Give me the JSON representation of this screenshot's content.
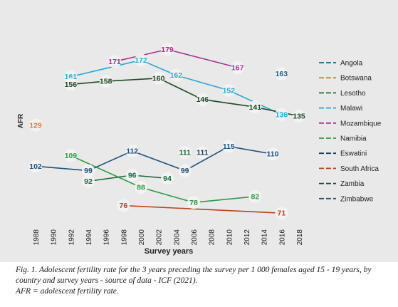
{
  "chart_data": {
    "type": "line",
    "ylabel": "AFR",
    "xlabel": "Survey years",
    "x_ticks": [
      1988,
      1990,
      1992,
      1994,
      1996,
      1998,
      2000,
      2002,
      2004,
      2006,
      2008,
      2010,
      2012,
      2014,
      2016,
      2018
    ],
    "xlim": [
      1988,
      2018
    ],
    "ylim": [
      65,
      190
    ],
    "grid": false,
    "legend_position": "right",
    "series": [
      {
        "name": "Angola",
        "color": "#1f5f8b",
        "points": [
          {
            "x": 2016,
            "y": 163
          }
        ]
      },
      {
        "name": "Botswana",
        "color": "#e07a3c",
        "points": [
          {
            "x": 1988,
            "y": 129
          }
        ]
      },
      {
        "name": "Lesotho",
        "color": "#1a6a3d",
        "points": [
          {
            "x": 2005,
            "y": 111
          }
        ]
      },
      {
        "name": "Malawi",
        "color": "#29a8d4",
        "points": [
          {
            "x": 1992,
            "y": 161
          },
          {
            "x": 2000,
            "y": 172
          },
          {
            "x": 2004,
            "y": 162
          },
          {
            "x": 2010,
            "y": 152
          },
          {
            "x": 2016,
            "y": 136
          }
        ]
      },
      {
        "name": "Mozambique",
        "color": "#a3338f",
        "points": [
          {
            "x": 1997,
            "y": 171
          },
          {
            "x": 2003,
            "y": 179
          },
          {
            "x": 2011,
            "y": 167
          }
        ]
      },
      {
        "name": "Namibia",
        "color": "#2e9b45",
        "points": [
          {
            "x": 1992,
            "y": 109
          },
          {
            "x": 2000,
            "y": 88
          },
          {
            "x": 2006,
            "y": 78
          },
          {
            "x": 2013,
            "y": 82
          }
        ]
      },
      {
        "name": "Eswatini",
        "color": "#1c3a5c",
        "points": [
          {
            "x": 2007,
            "y": 111
          }
        ]
      },
      {
        "name": "South Africa",
        "color": "#b5451b",
        "points": [
          {
            "x": 1998,
            "y": 76
          },
          {
            "x": 2016,
            "y": 71
          }
        ]
      },
      {
        "name": "Zambia",
        "color": "#1d4a24",
        "points": [
          {
            "x": 1992,
            "y": 156
          },
          {
            "x": 1996,
            "y": 158
          },
          {
            "x": 2002,
            "y": 160
          },
          {
            "x": 2007,
            "y": 146
          },
          {
            "x": 2013,
            "y": 141
          },
          {
            "x": 2018,
            "y": 135
          }
        ]
      },
      {
        "name": "Zimbabwe",
        "color": "#22527a",
        "points": [
          {
            "x": 1988,
            "y": 102
          },
          {
            "x": 1994,
            "y": 99
          },
          {
            "x": 1999,
            "y": 112
          },
          {
            "x": 2005,
            "y": 99
          },
          {
            "x": 2010,
            "y": 115
          },
          {
            "x": 2015,
            "y": 110
          }
        ]
      }
    ],
    "extra_labels": [
      {
        "value": 92,
        "x": 1994,
        "y": 92,
        "color": "#1a6a3d"
      },
      {
        "value": 96,
        "x": 1999,
        "y": 96,
        "color": "#1a6a3d"
      },
      {
        "value": 94,
        "x": 2003,
        "y": 94,
        "color": "#1a6a3d"
      }
    ],
    "lesotho_line": [
      {
        "x": 1994,
        "y": 92
      },
      {
        "x": 1999,
        "y": 96
      },
      {
        "x": 2003,
        "y": 94
      }
    ]
  },
  "caption": {
    "line1": "Fig. 1. Adolescent fertility rate for the 3 years preceding the survey per 1 000 females aged 15 - 19 years, by",
    "line2": "country and survey years - source of data - ICF (2021).",
    "line3": "AFR = adolescent fertility rate."
  }
}
